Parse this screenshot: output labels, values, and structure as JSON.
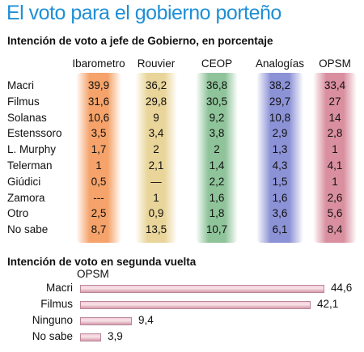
{
  "title": "El voto para el gobierno porteño",
  "chart_data": [
    {
      "type": "table",
      "title": "Intención de voto a jefe de Gobierno, en porcentaje",
      "columns": [
        {
          "name": "Ibarometro",
          "color": "#f5a36a"
        },
        {
          "name": "Rouvier",
          "color": "#e9d59a"
        },
        {
          "name": "CEOP",
          "color": "#8fc49a"
        },
        {
          "name": "Analogías",
          "color": "#8c92d6"
        },
        {
          "name": "OPSM",
          "color": "#d98f9f"
        }
      ],
      "rows": [
        {
          "label": "Macri",
          "values": [
            "39,9",
            "36,2",
            "36,8",
            "38,2",
            "33,4"
          ]
        },
        {
          "label": "Filmus",
          "values": [
            "31,6",
            "29,8",
            "30,5",
            "29,7",
            "27"
          ]
        },
        {
          "label": "Solanas",
          "values": [
            "10,6",
            "9",
            "9,2",
            "10,8",
            "14"
          ]
        },
        {
          "label": "Estenssoro",
          "values": [
            "3,5",
            "3,4",
            "3,8",
            "2,9",
            "2,8"
          ]
        },
        {
          "label": "L. Murphy",
          "values": [
            "1,7",
            "2",
            "2",
            "1,3",
            "1"
          ]
        },
        {
          "label": "Telerman",
          "values": [
            "1",
            "2,1",
            "1,4",
            "4,3",
            "4,1"
          ]
        },
        {
          "label": "Giúdici",
          "values": [
            "0,5",
            "—",
            "2,2",
            "1,5",
            "1"
          ]
        },
        {
          "label": "Zamora",
          "values": [
            "---",
            "1",
            "1,6",
            "1,6",
            "2,6"
          ]
        },
        {
          "label": "Otro",
          "values": [
            "2,5",
            "0,9",
            "1,8",
            "3,6",
            "5,6"
          ]
        },
        {
          "label": "No sabe",
          "values": [
            "8,7",
            "13,5",
            "10,7",
            "6,1",
            "8,4"
          ]
        }
      ]
    },
    {
      "type": "bar",
      "orientation": "horizontal",
      "title": "Intención de voto en segunda vuelta",
      "source": "OPSM",
      "categories": [
        "Macri",
        "Filmus",
        "Ninguno",
        "No sabe"
      ],
      "values": [
        44.6,
        42.1,
        9.4,
        3.9
      ],
      "value_labels": [
        "44,6",
        "42,1",
        "9,4",
        "3,9"
      ]
    }
  ]
}
